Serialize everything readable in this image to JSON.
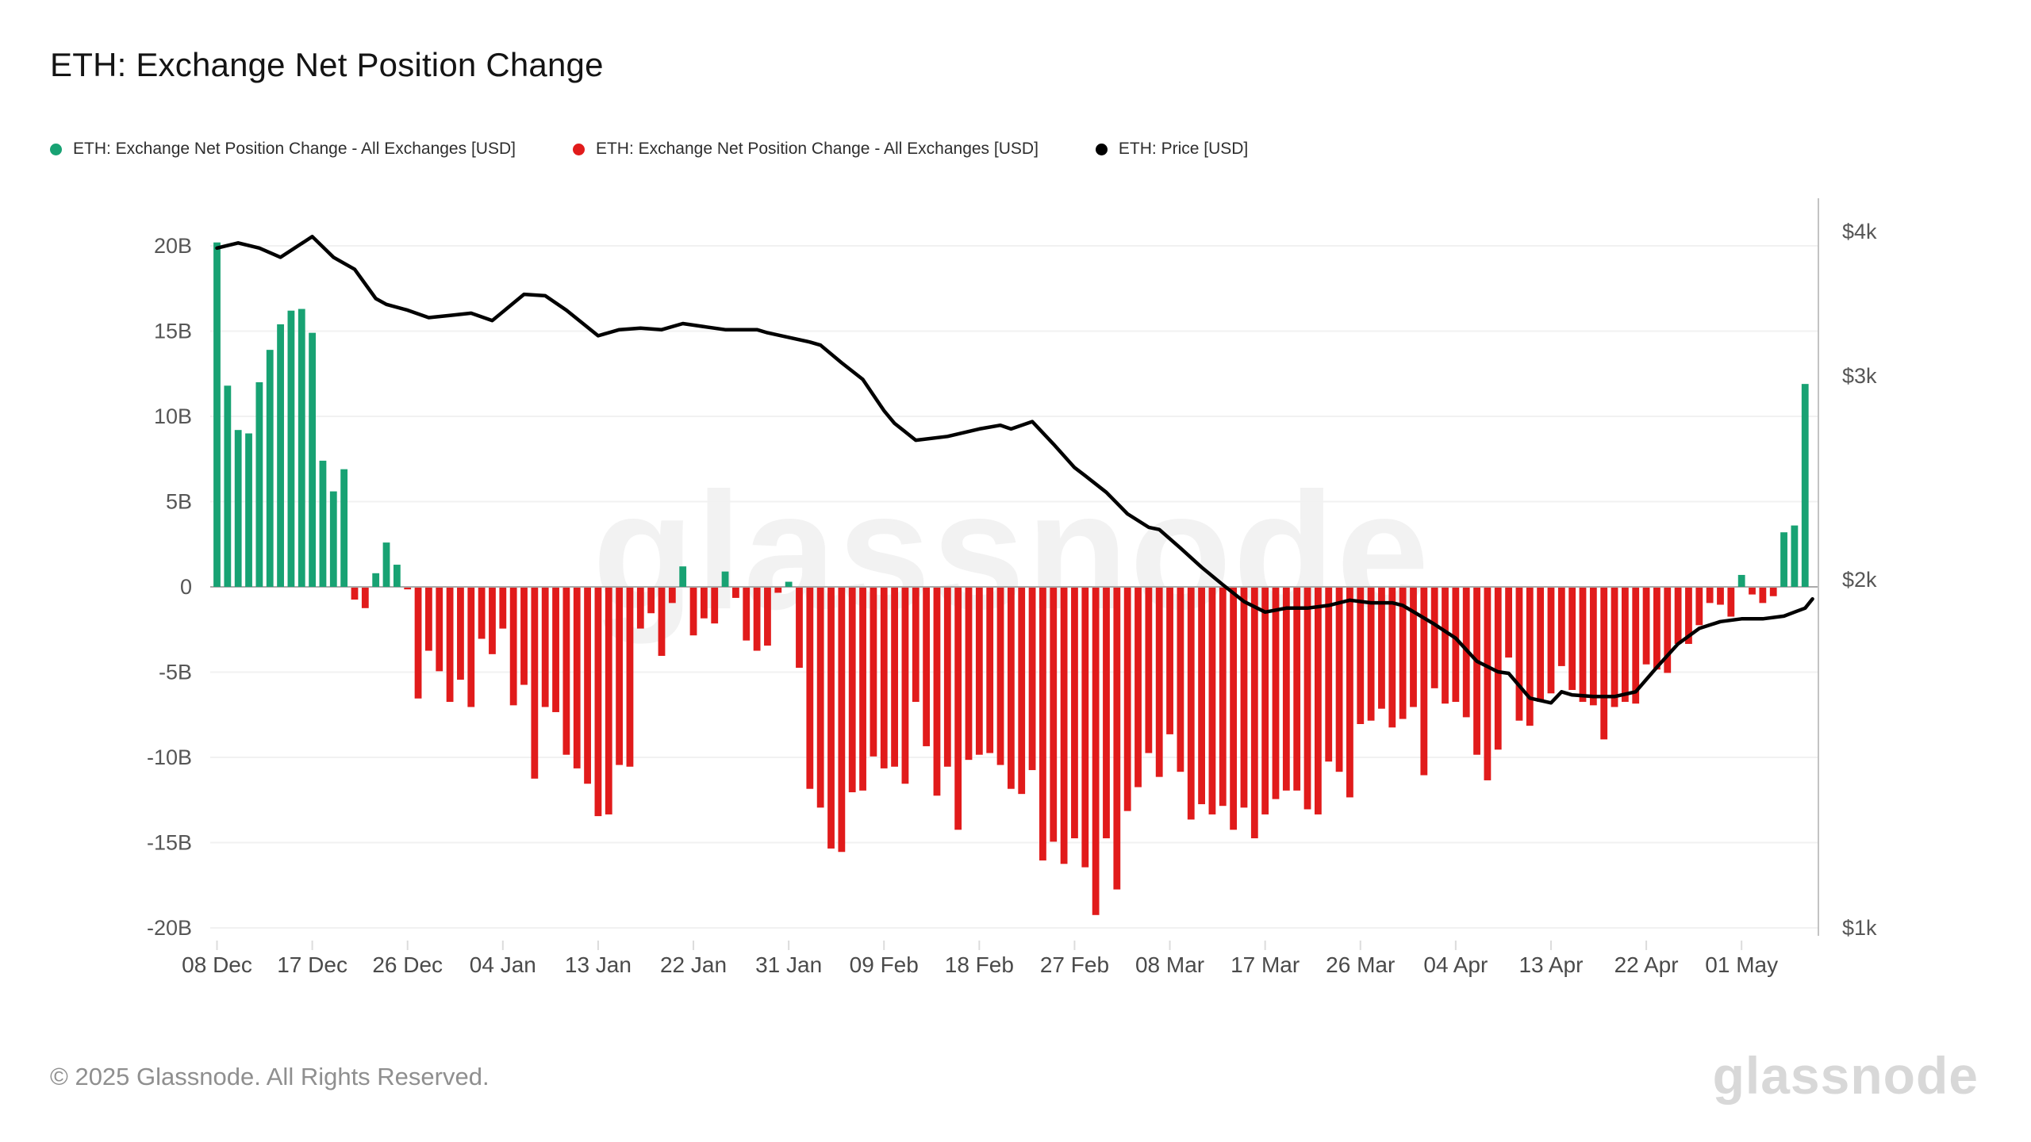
{
  "title": "ETH: Exchange Net Position Change",
  "legend": [
    {
      "label": "ETH: Exchange Net Position Change - All Exchanges [USD]",
      "color": "#18a273"
    },
    {
      "label": "ETH: Exchange Net Position Change - All Exchanges [USD]",
      "color": "#e11b1b"
    },
    {
      "label": "ETH: Price [USD]",
      "color": "#000000"
    }
  ],
  "watermark": "glassnode",
  "footer": {
    "copyright": "© 2025 Glassnode. All Rights Reserved.",
    "logo": "glassnode"
  },
  "chart_data": {
    "type": "bar",
    "bar_series_name": "ETH: Exchange Net Position Change - All Exchanges [USD]",
    "bar_unit": "billions USD",
    "start_date": "2024-12-08",
    "end_date": "2025-05-07",
    "frequency": "daily",
    "positive_color": "#18a273",
    "negative_color": "#e11b1b",
    "values": [
      20.2,
      11.8,
      9.2,
      9.0,
      12.0,
      13.9,
      15.4,
      16.2,
      16.3,
      14.9,
      7.4,
      5.6,
      6.9,
      -0.7,
      -1.2,
      0.8,
      2.6,
      1.3,
      -0.1,
      -6.5,
      -3.7,
      -4.9,
      -6.7,
      -5.4,
      -7.0,
      -3.0,
      -3.9,
      -2.4,
      -6.9,
      -5.7,
      -11.2,
      -7.0,
      -7.3,
      -9.8,
      -10.6,
      -11.5,
      -13.4,
      -13.3,
      -10.4,
      -10.5,
      -2.4,
      -1.5,
      -4.0,
      -0.9,
      1.2,
      -2.8,
      -1.8,
      -2.1,
      0.9,
      -0.6,
      -3.1,
      -3.7,
      -3.4,
      -0.3,
      0.3,
      -4.7,
      -11.8,
      -12.9,
      -15.3,
      -15.5,
      -12.0,
      -11.9,
      -9.9,
      -10.6,
      -10.5,
      -11.5,
      -6.7,
      -9.3,
      -12.2,
      -10.5,
      -14.2,
      -10.1,
      -9.8,
      -9.7,
      -10.4,
      -11.8,
      -12.1,
      -10.7,
      -16.0,
      -14.9,
      -16.2,
      -14.7,
      -16.4,
      -19.2,
      -14.7,
      -17.7,
      -13.1,
      -11.7,
      -9.7,
      -11.1,
      -8.6,
      -10.8,
      -13.6,
      -12.7,
      -13.3,
      -12.8,
      -14.2,
      -12.9,
      -14.7,
      -13.3,
      -12.4,
      -11.9,
      -11.9,
      -13.0,
      -13.3,
      -10.2,
      -10.8,
      -12.3,
      -8.0,
      -7.8,
      -7.1,
      -8.2,
      -7.7,
      -7.0,
      -11.0,
      -5.9,
      -6.8,
      -6.7,
      -7.6,
      -9.8,
      -11.3,
      -9.5,
      -4.1,
      -7.8,
      -8.1,
      -6.7,
      -6.2,
      -4.6,
      -6.0,
      -6.7,
      -6.9,
      -8.9,
      -7.0,
      -6.7,
      -6.8,
      -4.5,
      -4.8,
      -5.0,
      -3.3,
      -3.3,
      -2.2,
      -0.9,
      -1.0,
      -1.7,
      0.7,
      -0.4,
      -0.9,
      -0.5,
      3.2,
      3.6,
      11.9
    ],
    "line_series_name": "ETH: Price [USD]",
    "line_color": "#000000",
    "price_points": [
      [
        0,
        3870
      ],
      [
        2,
        3910
      ],
      [
        4,
        3870
      ],
      [
        6,
        3800
      ],
      [
        9,
        3960
      ],
      [
        11,
        3800
      ],
      [
        13,
        3710
      ],
      [
        15,
        3500
      ],
      [
        16,
        3460
      ],
      [
        18,
        3420
      ],
      [
        20,
        3370
      ],
      [
        22,
        3385
      ],
      [
        24,
        3400
      ],
      [
        26,
        3350
      ],
      [
        29,
        3530
      ],
      [
        31,
        3520
      ],
      [
        33,
        3420
      ],
      [
        36,
        3250
      ],
      [
        38,
        3290
      ],
      [
        40,
        3300
      ],
      [
        42,
        3290
      ],
      [
        44,
        3330
      ],
      [
        46,
        3310
      ],
      [
        48,
        3290
      ],
      [
        51,
        3290
      ],
      [
        52,
        3270
      ],
      [
        54,
        3240
      ],
      [
        56,
        3210
      ],
      [
        57,
        3190
      ],
      [
        59,
        3080
      ],
      [
        61,
        2980
      ],
      [
        63,
        2800
      ],
      [
        64,
        2730
      ],
      [
        66,
        2640
      ],
      [
        69,
        2660
      ],
      [
        72,
        2700
      ],
      [
        74,
        2720
      ],
      [
        75,
        2700
      ],
      [
        77,
        2740
      ],
      [
        79,
        2620
      ],
      [
        81,
        2500
      ],
      [
        82,
        2460
      ],
      [
        84,
        2380
      ],
      [
        86,
        2280
      ],
      [
        88,
        2220
      ],
      [
        89,
        2210
      ],
      [
        91,
        2130
      ],
      [
        93,
        2050
      ],
      [
        95,
        1980
      ],
      [
        97,
        1915
      ],
      [
        99,
        1875
      ],
      [
        101,
        1890
      ],
      [
        103,
        1890
      ],
      [
        105,
        1900
      ],
      [
        107,
        1920
      ],
      [
        109,
        1910
      ],
      [
        111,
        1910
      ],
      [
        112,
        1900
      ],
      [
        115,
        1830
      ],
      [
        117,
        1780
      ],
      [
        119,
        1700
      ],
      [
        121,
        1665
      ],
      [
        122,
        1660
      ],
      [
        124,
        1580
      ],
      [
        126,
        1565
      ],
      [
        127,
        1600
      ],
      [
        128,
        1590
      ],
      [
        130,
        1585
      ],
      [
        132,
        1585
      ],
      [
        134,
        1600
      ],
      [
        136,
        1680
      ],
      [
        138,
        1760
      ],
      [
        140,
        1815
      ],
      [
        142,
        1840
      ],
      [
        144,
        1850
      ],
      [
        146,
        1850
      ],
      [
        148,
        1860
      ],
      [
        149,
        1875
      ],
      [
        150,
        1890
      ],
      [
        150.7,
        1925
      ]
    ],
    "left_axis": {
      "ticks": [
        "20B",
        "15B",
        "10B",
        "5B",
        "0",
        "-5B",
        "-10B",
        "-15B",
        "-20B"
      ],
      "values": [
        20,
        15,
        10,
        5,
        0,
        -5,
        -10,
        -15,
        -20
      ],
      "ylim": [
        -20,
        20
      ]
    },
    "right_axis": {
      "ticks": [
        "$4k",
        "$3k",
        "$2k",
        "$1k"
      ],
      "values": [
        4000,
        3000,
        2000,
        1000
      ],
      "scale": "log"
    },
    "x_ticks": [
      {
        "i": 0,
        "label": "08 Dec"
      },
      {
        "i": 9,
        "label": "17 Dec"
      },
      {
        "i": 18,
        "label": "26 Dec"
      },
      {
        "i": 27,
        "label": "04 Jan"
      },
      {
        "i": 36,
        "label": "13 Jan"
      },
      {
        "i": 45,
        "label": "22 Jan"
      },
      {
        "i": 54,
        "label": "31 Jan"
      },
      {
        "i": 63,
        "label": "09 Feb"
      },
      {
        "i": 72,
        "label": "18 Feb"
      },
      {
        "i": 81,
        "label": "27 Feb"
      },
      {
        "i": 90,
        "label": "08 Mar"
      },
      {
        "i": 99,
        "label": "17 Mar"
      },
      {
        "i": 108,
        "label": "26 Mar"
      },
      {
        "i": 117,
        "label": "04 Apr"
      },
      {
        "i": 126,
        "label": "13 Apr"
      },
      {
        "i": 135,
        "label": "22 Apr"
      },
      {
        "i": 144,
        "label": "01 May"
      }
    ],
    "grid": "horizontal-only",
    "legend_position": "top-left"
  }
}
